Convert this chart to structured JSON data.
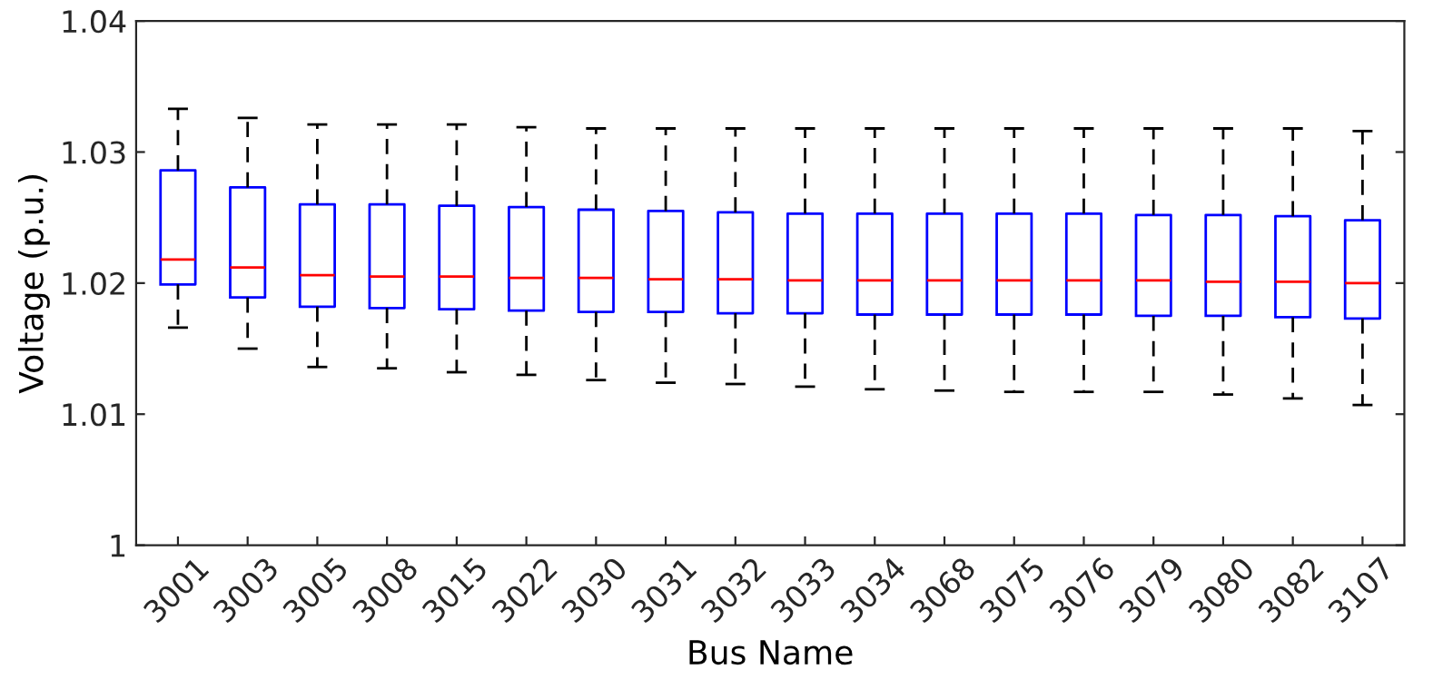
{
  "chart_data": {
    "type": "box",
    "xlabel": "Bus Name",
    "ylabel": "Voltage (p.u.)",
    "categories": [
      "3001",
      "3003",
      "3005",
      "3008",
      "3015",
      "3022",
      "3030",
      "3031",
      "3032",
      "3033",
      "3034",
      "3068",
      "3075",
      "3076",
      "3079",
      "3080",
      "3082",
      "3107"
    ],
    "ylim": [
      1,
      1.04
    ],
    "yticks": [
      1,
      1.01,
      1.02,
      1.03,
      1.04
    ],
    "grid": false,
    "line_style": "dashed",
    "series": [
      {
        "color": "#0000ff",
        "boxes": [
          {
            "low": 1.0166,
            "q1": 1.0199,
            "median": 1.0218,
            "q3": 1.0286,
            "high": 1.0333
          },
          {
            "low": 1.015,
            "q1": 1.0189,
            "median": 1.0212,
            "q3": 1.0273,
            "high": 1.0326
          },
          {
            "low": 1.0136,
            "q1": 1.0182,
            "median": 1.0206,
            "q3": 1.026,
            "high": 1.0321
          },
          {
            "low": 1.0135,
            "q1": 1.0181,
            "median": 1.0205,
            "q3": 1.026,
            "high": 1.0321
          },
          {
            "low": 1.0132,
            "q1": 1.018,
            "median": 1.0205,
            "q3": 1.0259,
            "high": 1.0321
          },
          {
            "low": 1.013,
            "q1": 1.0179,
            "median": 1.0204,
            "q3": 1.0258,
            "high": 1.0319
          },
          {
            "low": 1.0126,
            "q1": 1.0178,
            "median": 1.0204,
            "q3": 1.0256,
            "high": 1.0318
          },
          {
            "low": 1.0124,
            "q1": 1.0178,
            "median": 1.0203,
            "q3": 1.0255,
            "high": 1.0318
          },
          {
            "low": 1.0123,
            "q1": 1.0177,
            "median": 1.0203,
            "q3": 1.0254,
            "high": 1.0318
          },
          {
            "low": 1.0121,
            "q1": 1.0177,
            "median": 1.0202,
            "q3": 1.0253,
            "high": 1.0318
          },
          {
            "low": 1.0119,
            "q1": 1.0176,
            "median": 1.0202,
            "q3": 1.0253,
            "high": 1.0318
          },
          {
            "low": 1.0118,
            "q1": 1.0176,
            "median": 1.0202,
            "q3": 1.0253,
            "high": 1.0318
          },
          {
            "low": 1.0117,
            "q1": 1.0176,
            "median": 1.0202,
            "q3": 1.0253,
            "high": 1.0318
          },
          {
            "low": 1.0117,
            "q1": 1.0176,
            "median": 1.0202,
            "q3": 1.0253,
            "high": 1.0318
          },
          {
            "low": 1.0117,
            "q1": 1.0175,
            "median": 1.0202,
            "q3": 1.0252,
            "high": 1.0318
          },
          {
            "low": 1.0115,
            "q1": 1.0175,
            "median": 1.0201,
            "q3": 1.0252,
            "high": 1.0318
          },
          {
            "low": 1.0112,
            "q1": 1.0174,
            "median": 1.0201,
            "q3": 1.0251,
            "high": 1.0318
          },
          {
            "low": 1.0107,
            "q1": 1.0173,
            "median": 1.02,
            "q3": 1.0248,
            "high": 1.0316
          }
        ]
      }
    ]
  }
}
